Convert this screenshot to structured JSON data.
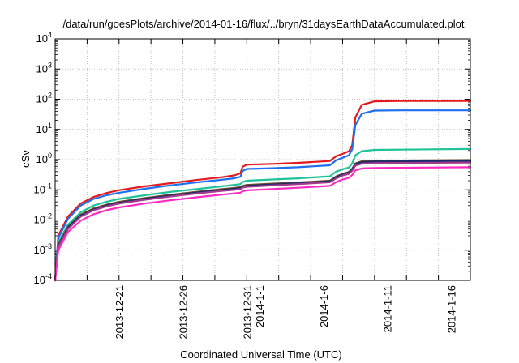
{
  "chart_data": {
    "type": "line",
    "title": "/data/run/goesPlots/archive/2014-01-16/flux/../bryn/31daysEarthDataAccumulated.plot",
    "xlabel": "Coordinated Universal Time (UTC)",
    "ylabel": "cSv",
    "xlim": [
      "2013-12-16",
      "2014-01-17 12:00"
    ],
    "ylim": [
      0.0001,
      10000
    ],
    "yscale": "log",
    "grid": true,
    "legend": "none",
    "x_ticks": [
      {
        "date": "2013-12-21",
        "lines": [
          "2013-12-21"
        ]
      },
      {
        "date": "2013-12-26",
        "lines": [
          "2013-12-26"
        ]
      },
      {
        "date": "2013-12-31",
        "lines": [
          "2013-12-31"
        ]
      },
      {
        "date": "2014-01-01",
        "lines": [
          "2014-1-1"
        ]
      },
      {
        "date": "2014-01-06",
        "lines": [
          "2014-1-6"
        ]
      },
      {
        "date": "2014-01-11",
        "lines": [
          "2014-1-11"
        ]
      },
      {
        "date": "2014-01-16",
        "lines": [
          "2014-1-16"
        ]
      }
    ],
    "y_ticks": [
      {
        "value": 0.0001,
        "base": "10",
        "exp": "-4"
      },
      {
        "value": 0.001,
        "base": "10",
        "exp": "-3"
      },
      {
        "value": 0.01,
        "base": "10",
        "exp": "-2"
      },
      {
        "value": 0.1,
        "base": "10",
        "exp": "-1"
      },
      {
        "value": 1,
        "base": "10",
        "exp": "0"
      },
      {
        "value": 10,
        "base": "10",
        "exp": "1"
      },
      {
        "value": 100,
        "base": "10",
        "exp": "2"
      },
      {
        "value": 1000,
        "base": "10",
        "exp": "3"
      },
      {
        "value": 10000,
        "base": "10",
        "exp": "4"
      }
    ],
    "series": [
      {
        "color": "#e41a1c",
        "points": [
          [
            "2013-12-16 00:00",
            0.0001
          ],
          [
            "2013-12-16 06:00",
            0.003
          ],
          [
            "2013-12-17 00:00",
            0.013
          ],
          [
            "2013-12-18 00:00",
            0.035
          ],
          [
            "2013-12-19 00:00",
            0.058
          ],
          [
            "2013-12-20 00:00",
            0.078
          ],
          [
            "2013-12-21 00:00",
            0.097
          ],
          [
            "2013-12-23 00:00",
            0.13
          ],
          [
            "2013-12-25 00:00",
            0.165
          ],
          [
            "2013-12-27 00:00",
            0.21
          ],
          [
            "2013-12-29 00:00",
            0.26
          ],
          [
            "2013-12-30 00:00",
            0.3
          ],
          [
            "2013-12-30 12:00",
            0.35
          ],
          [
            "2013-12-30 16:00",
            0.58
          ],
          [
            "2013-12-31 00:00",
            0.68
          ],
          [
            "2014-01-02 00:00",
            0.72
          ],
          [
            "2014-01-04 00:00",
            0.78
          ],
          [
            "2014-01-06 12:00",
            0.9
          ],
          [
            "2014-01-07 00:00",
            1.3
          ],
          [
            "2014-01-07 12:00",
            1.55
          ],
          [
            "2014-01-08 00:00",
            1.9
          ],
          [
            "2014-01-08 06:00",
            3
          ],
          [
            "2014-01-08 12:00",
            25
          ],
          [
            "2014-01-09 00:00",
            65
          ],
          [
            "2014-01-10 00:00",
            85
          ],
          [
            "2014-01-12 00:00",
            88
          ],
          [
            "2014-01-17 12:00",
            88
          ]
        ]
      },
      {
        "color": "#1f6ff0",
        "points": [
          [
            "2013-12-16 00:00",
            0.0001
          ],
          [
            "2013-12-16 06:00",
            0.0025
          ],
          [
            "2013-12-17 00:00",
            0.011
          ],
          [
            "2013-12-18 00:00",
            0.03
          ],
          [
            "2013-12-19 00:00",
            0.05
          ],
          [
            "2013-12-20 00:00",
            0.066
          ],
          [
            "2013-12-21 00:00",
            0.08
          ],
          [
            "2013-12-23 00:00",
            0.108
          ],
          [
            "2013-12-25 00:00",
            0.14
          ],
          [
            "2013-12-27 00:00",
            0.175
          ],
          [
            "2013-12-29 00:00",
            0.215
          ],
          [
            "2013-12-30 00:00",
            0.24
          ],
          [
            "2013-12-30 12:00",
            0.27
          ],
          [
            "2013-12-30 16:00",
            0.42
          ],
          [
            "2013-12-31 00:00",
            0.49
          ],
          [
            "2014-01-02 00:00",
            0.52
          ],
          [
            "2014-01-04 00:00",
            0.56
          ],
          [
            "2014-01-06 12:00",
            0.65
          ],
          [
            "2014-01-07 00:00",
            0.95
          ],
          [
            "2014-01-07 12:00",
            1.15
          ],
          [
            "2014-01-08 00:00",
            1.4
          ],
          [
            "2014-01-08 06:00",
            2.2
          ],
          [
            "2014-01-08 12:00",
            14
          ],
          [
            "2014-01-09 00:00",
            33
          ],
          [
            "2014-01-10 00:00",
            42
          ],
          [
            "2014-01-12 00:00",
            43
          ],
          [
            "2014-01-17 12:00",
            43
          ]
        ]
      },
      {
        "color": "#1fc29a",
        "points": [
          [
            "2013-12-16 00:00",
            0.0001
          ],
          [
            "2013-12-16 06:00",
            0.0018
          ],
          [
            "2013-12-17 00:00",
            0.007
          ],
          [
            "2013-12-18 00:00",
            0.018
          ],
          [
            "2013-12-19 00:00",
            0.03
          ],
          [
            "2013-12-20 00:00",
            0.04
          ],
          [
            "2013-12-21 00:00",
            0.05
          ],
          [
            "2013-12-23 00:00",
            0.066
          ],
          [
            "2013-12-25 00:00",
            0.085
          ],
          [
            "2013-12-27 00:00",
            0.105
          ],
          [
            "2013-12-29 00:00",
            0.13
          ],
          [
            "2013-12-30 00:00",
            0.145
          ],
          [
            "2013-12-30 12:00",
            0.155
          ],
          [
            "2013-12-30 16:00",
            0.18
          ],
          [
            "2013-12-31 00:00",
            0.2
          ],
          [
            "2014-01-02 00:00",
            0.22
          ],
          [
            "2014-01-04 00:00",
            0.24
          ],
          [
            "2014-01-06 12:00",
            0.28
          ],
          [
            "2014-01-07 00:00",
            0.4
          ],
          [
            "2014-01-07 12:00",
            0.48
          ],
          [
            "2014-01-08 00:00",
            0.55
          ],
          [
            "2014-01-08 06:00",
            0.75
          ],
          [
            "2014-01-08 12:00",
            1.4
          ],
          [
            "2014-01-09 00:00",
            1.9
          ],
          [
            "2014-01-10 00:00",
            2.1
          ],
          [
            "2014-01-17 12:00",
            2.25
          ]
        ]
      },
      {
        "color": "#6b4c2a",
        "points": [
          [
            "2013-12-16 00:00",
            0.0001
          ],
          [
            "2013-12-16 06:00",
            0.0015
          ],
          [
            "2013-12-17 00:00",
            0.006
          ],
          [
            "2013-12-18 00:00",
            0.015
          ],
          [
            "2013-12-19 00:00",
            0.024
          ],
          [
            "2013-12-20 00:00",
            0.032
          ],
          [
            "2013-12-21 00:00",
            0.04
          ],
          [
            "2013-12-23 00:00",
            0.053
          ],
          [
            "2013-12-25 00:00",
            0.068
          ],
          [
            "2013-12-27 00:00",
            0.085
          ],
          [
            "2013-12-29 00:00",
            0.105
          ],
          [
            "2013-12-30 00:00",
            0.115
          ],
          [
            "2013-12-30 12:00",
            0.122
          ],
          [
            "2013-12-30 16:00",
            0.135
          ],
          [
            "2013-12-31 00:00",
            0.145
          ],
          [
            "2014-01-02 00:00",
            0.16
          ],
          [
            "2014-01-04 00:00",
            0.175
          ],
          [
            "2014-01-06 12:00",
            0.2
          ],
          [
            "2014-01-07 00:00",
            0.28
          ],
          [
            "2014-01-07 12:00",
            0.34
          ],
          [
            "2014-01-08 00:00",
            0.39
          ],
          [
            "2014-01-08 06:00",
            0.5
          ],
          [
            "2014-01-08 12:00",
            0.75
          ],
          [
            "2014-01-09 00:00",
            0.88
          ],
          [
            "2014-01-10 00:00",
            0.92
          ],
          [
            "2014-01-17 12:00",
            0.97
          ]
        ]
      },
      {
        "color": "#1a2a6c",
        "points": [
          [
            "2013-12-16 00:00",
            0.0001
          ],
          [
            "2013-12-16 06:00",
            0.0014
          ],
          [
            "2013-12-17 00:00",
            0.0055
          ],
          [
            "2013-12-18 00:00",
            0.014
          ],
          [
            "2013-12-19 00:00",
            0.022
          ],
          [
            "2013-12-20 00:00",
            0.03
          ],
          [
            "2013-12-21 00:00",
            0.037
          ],
          [
            "2013-12-23 00:00",
            0.05
          ],
          [
            "2013-12-25 00:00",
            0.064
          ],
          [
            "2013-12-27 00:00",
            0.08
          ],
          [
            "2013-12-29 00:00",
            0.098
          ],
          [
            "2013-12-30 00:00",
            0.108
          ],
          [
            "2013-12-30 12:00",
            0.114
          ],
          [
            "2013-12-30 16:00",
            0.126
          ],
          [
            "2013-12-31 00:00",
            0.135
          ],
          [
            "2014-01-02 00:00",
            0.15
          ],
          [
            "2014-01-04 00:00",
            0.165
          ],
          [
            "2014-01-06 12:00",
            0.19
          ],
          [
            "2014-01-07 00:00",
            0.26
          ],
          [
            "2014-01-07 12:00",
            0.32
          ],
          [
            "2014-01-08 00:00",
            0.37
          ],
          [
            "2014-01-08 06:00",
            0.47
          ],
          [
            "2014-01-08 12:00",
            0.7
          ],
          [
            "2014-01-09 00:00",
            0.82
          ],
          [
            "2014-01-10 00:00",
            0.86
          ],
          [
            "2014-01-17 12:00",
            0.9
          ]
        ]
      },
      {
        "color": "#a03a8a",
        "points": [
          [
            "2013-12-16 00:00",
            0.0001
          ],
          [
            "2013-12-16 06:00",
            0.0013
          ],
          [
            "2013-12-17 00:00",
            0.005
          ],
          [
            "2013-12-18 00:00",
            0.013
          ],
          [
            "2013-12-19 00:00",
            0.021
          ],
          [
            "2013-12-20 00:00",
            0.028
          ],
          [
            "2013-12-21 00:00",
            0.035
          ],
          [
            "2013-12-23 00:00",
            0.047
          ],
          [
            "2013-12-25 00:00",
            0.06
          ],
          [
            "2013-12-27 00:00",
            0.075
          ],
          [
            "2013-12-29 00:00",
            0.092
          ],
          [
            "2013-12-30 00:00",
            0.1
          ],
          [
            "2013-12-30 12:00",
            0.106
          ],
          [
            "2013-12-30 16:00",
            0.118
          ],
          [
            "2013-12-31 00:00",
            0.126
          ],
          [
            "2014-01-02 00:00",
            0.14
          ],
          [
            "2014-01-04 00:00",
            0.155
          ],
          [
            "2014-01-06 12:00",
            0.178
          ],
          [
            "2014-01-07 00:00",
            0.24
          ],
          [
            "2014-01-07 12:00",
            0.3
          ],
          [
            "2014-01-08 00:00",
            0.34
          ],
          [
            "2014-01-08 06:00",
            0.43
          ],
          [
            "2014-01-08 12:00",
            0.63
          ],
          [
            "2014-01-09 00:00",
            0.74
          ],
          [
            "2014-01-10 00:00",
            0.77
          ],
          [
            "2014-01-17 12:00",
            0.8
          ]
        ]
      },
      {
        "color": "#ff2bc2",
        "points": [
          [
            "2013-12-16 00:00",
            0.0001
          ],
          [
            "2013-12-16 06:00",
            0.001
          ],
          [
            "2013-12-17 00:00",
            0.004
          ],
          [
            "2013-12-18 00:00",
            0.0095
          ],
          [
            "2013-12-19 00:00",
            0.0155
          ],
          [
            "2013-12-20 00:00",
            0.021
          ],
          [
            "2013-12-21 00:00",
            0.026
          ],
          [
            "2013-12-23 00:00",
            0.035
          ],
          [
            "2013-12-25 00:00",
            0.045
          ],
          [
            "2013-12-27 00:00",
            0.056
          ],
          [
            "2013-12-29 00:00",
            0.069
          ],
          [
            "2013-12-30 00:00",
            0.076
          ],
          [
            "2013-12-30 12:00",
            0.08
          ],
          [
            "2013-12-30 16:00",
            0.09
          ],
          [
            "2013-12-31 00:00",
            0.096
          ],
          [
            "2014-01-02 00:00",
            0.106
          ],
          [
            "2014-01-04 00:00",
            0.117
          ],
          [
            "2014-01-06 12:00",
            0.135
          ],
          [
            "2014-01-07 00:00",
            0.18
          ],
          [
            "2014-01-07 12:00",
            0.22
          ],
          [
            "2014-01-08 00:00",
            0.25
          ],
          [
            "2014-01-08 06:00",
            0.31
          ],
          [
            "2014-01-08 12:00",
            0.44
          ],
          [
            "2014-01-09 00:00",
            0.51
          ],
          [
            "2014-01-10 00:00",
            0.53
          ],
          [
            "2014-01-17 12:00",
            0.56
          ]
        ]
      }
    ]
  }
}
